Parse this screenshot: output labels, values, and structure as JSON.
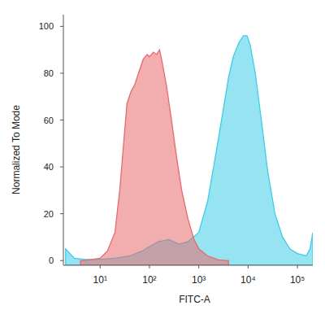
{
  "chart_data": {
    "type": "area",
    "log": "x",
    "xlabel": "FITC-A",
    "ylabel": "Normalized To Mode",
    "xlim": [
      1.8,
      205000
    ],
    "ylim": [
      -2,
      105
    ],
    "xticks": [
      {
        "value": 10,
        "label": "10¹"
      },
      {
        "value": 100,
        "label": "10²"
      },
      {
        "value": 1000,
        "label": "10³"
      },
      {
        "value": 10000,
        "label": "10⁴"
      },
      {
        "value": 100000,
        "label": "10⁵"
      }
    ],
    "yticks": [
      0,
      20,
      40,
      60,
      80,
      100
    ],
    "grid": false,
    "series": [
      {
        "color": "#3fcde6",
        "x": [
          2,
          3,
          5,
          10,
          20,
          40,
          70,
          100,
          150,
          250,
          400,
          600,
          1000,
          1500,
          2000,
          3000,
          4000,
          5000,
          6500,
          8000,
          9500,
          11000,
          14000,
          18000,
          25000,
          35000,
          50000,
          70000,
          100000,
          150000,
          180000,
          205000
        ],
        "values": [
          5,
          1,
          0.5,
          0.5,
          1,
          2,
          4,
          6,
          8,
          9,
          7,
          8,
          12,
          25,
          40,
          62,
          78,
          87,
          93,
          96,
          96,
          92,
          80,
          62,
          38,
          20,
          10,
          5,
          3,
          2,
          5,
          12
        ]
      },
      {
        "color": "#e8696b",
        "x": [
          4,
          6,
          10,
          14,
          20,
          25,
          30,
          35,
          42,
          50,
          60,
          75,
          90,
          100,
          120,
          140,
          160,
          180,
          220,
          280,
          350,
          450,
          600,
          800,
          1000,
          1500,
          2500,
          4000
        ],
        "values": [
          0,
          0.3,
          1,
          4,
          12,
          30,
          50,
          67,
          72,
          75,
          80,
          86,
          88,
          87,
          89,
          88,
          90,
          85,
          75,
          60,
          45,
          30,
          18,
          9,
          5,
          2,
          0.3,
          0
        ]
      }
    ]
  }
}
